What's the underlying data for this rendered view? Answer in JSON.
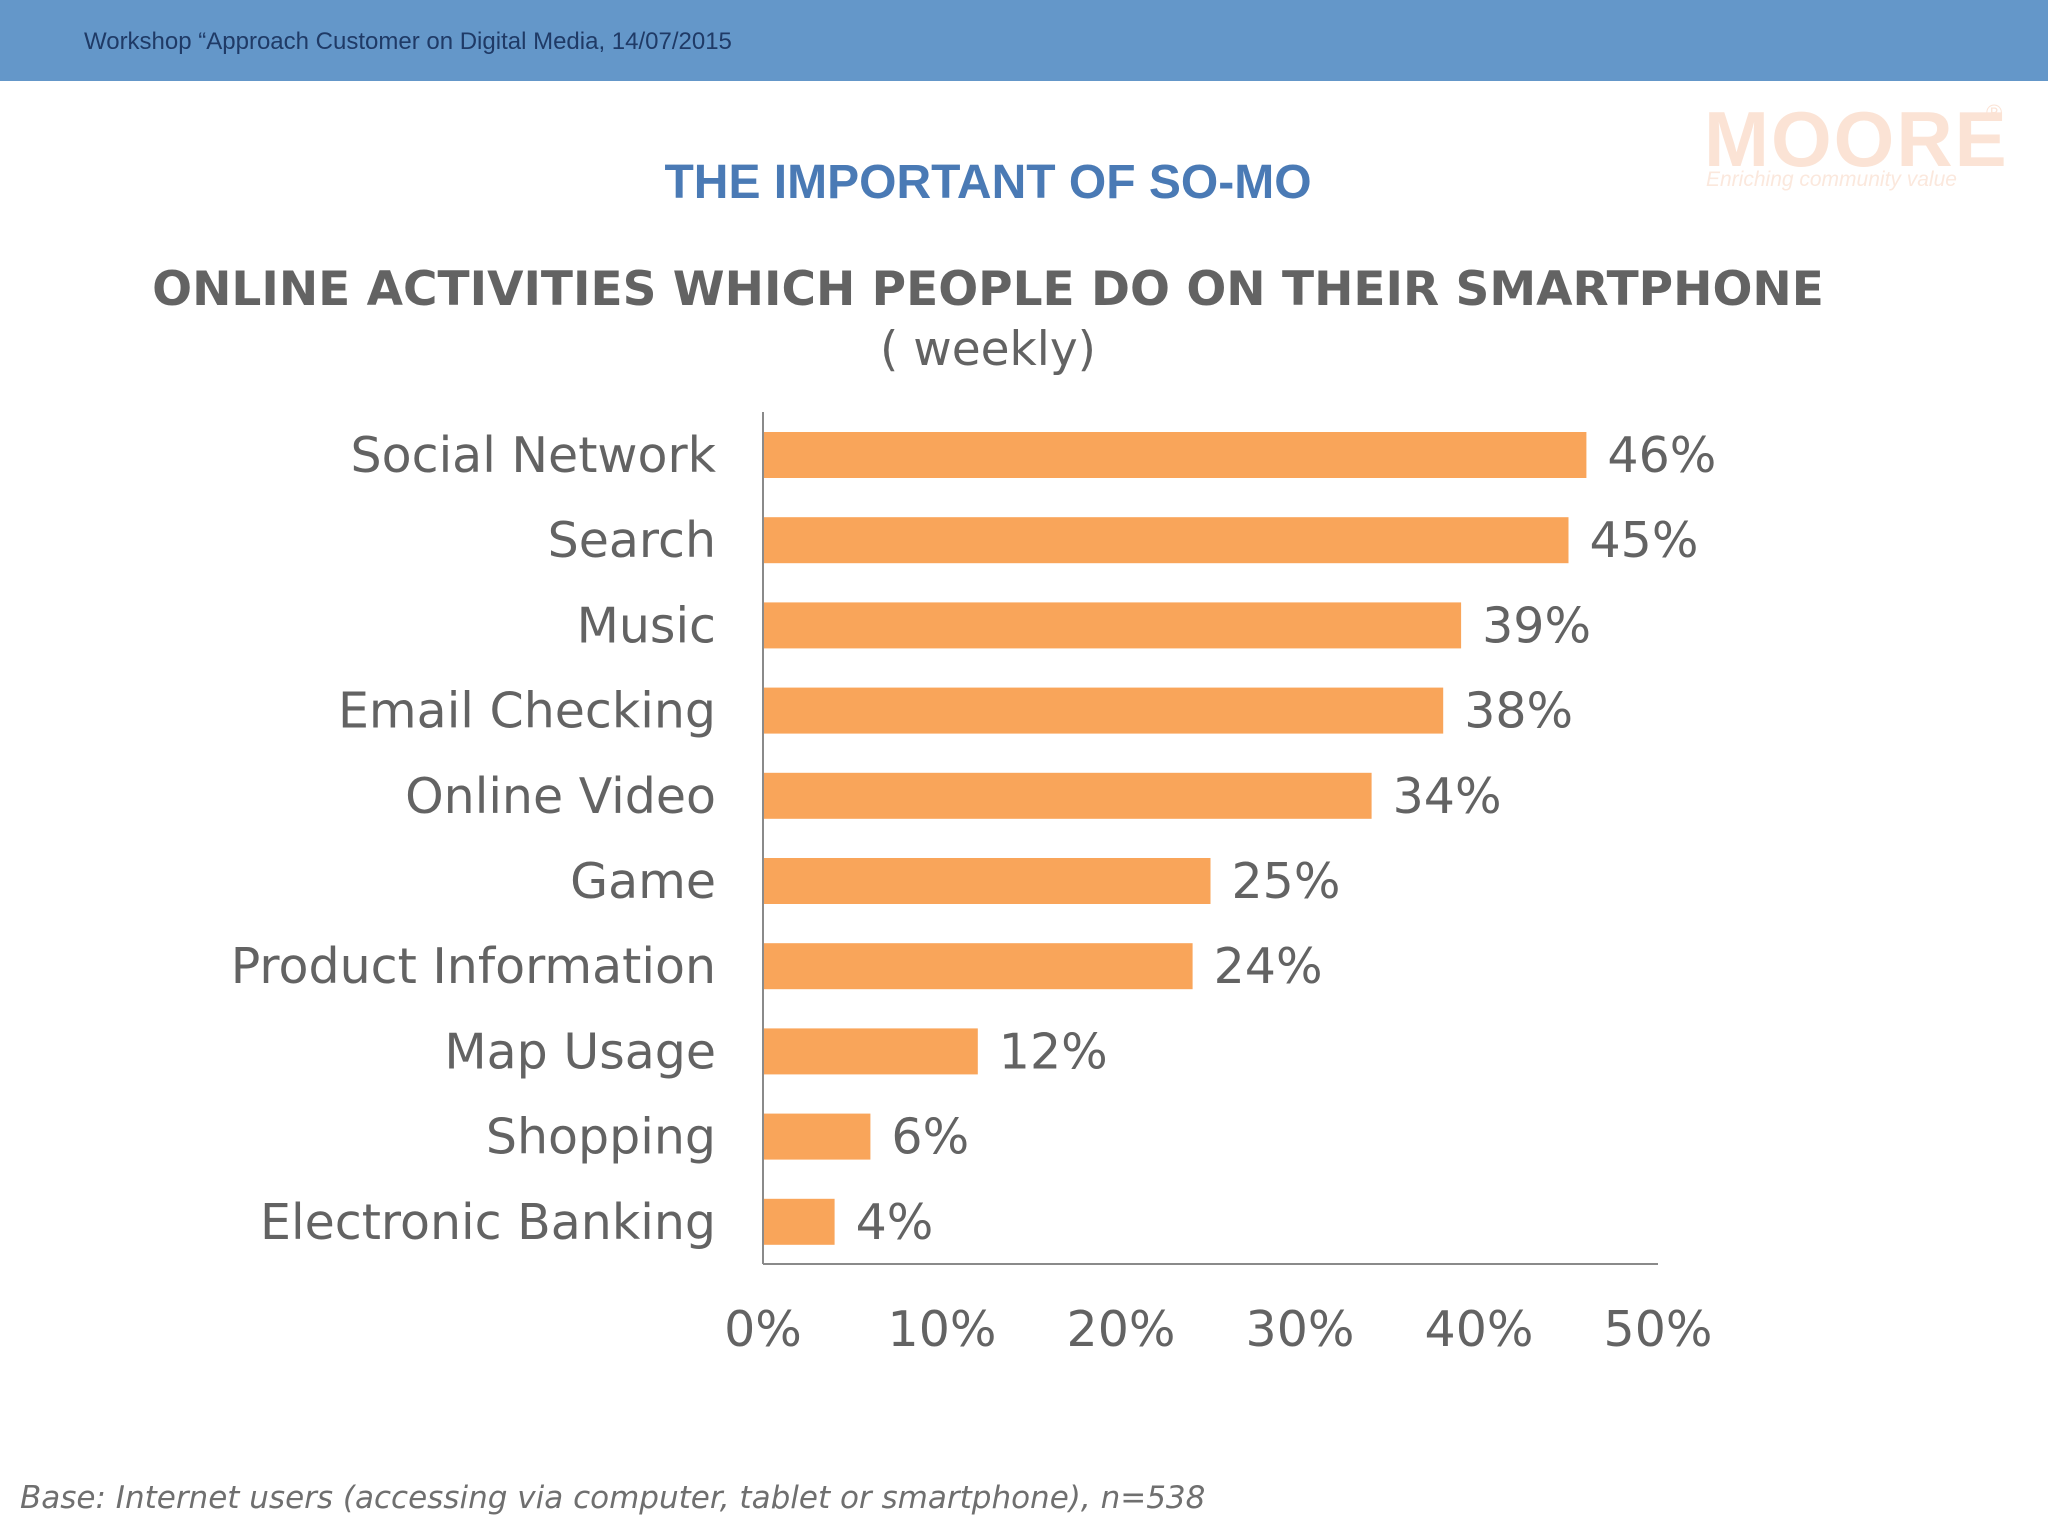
{
  "header": {
    "text": "Workshop “Approach Customer on Digital Media, 14/07/2015"
  },
  "logo": {
    "word": "MOORE",
    "registered": "®",
    "tagline": "Enriching community value"
  },
  "slide_title": "THE IMPORTANT OF SO-MO",
  "colors": {
    "header_band": "#6497c9",
    "bar": "#f9a55a",
    "title": "#4a7ab5",
    "text": "#636363"
  },
  "chart_data": {
    "type": "bar",
    "orientation": "horizontal",
    "title": "ONLINE ACTIVITIES WHICH PEOPLE DO ON THEIR SMARTPHONE",
    "subtitle": "( weekly)",
    "categories": [
      "Social Network",
      "Search",
      "Music",
      "Email Checking",
      "Online Video",
      "Game",
      "Product Information",
      "Map Usage",
      "Shopping",
      "Electronic Banking"
    ],
    "values": [
      46,
      45,
      39,
      38,
      34,
      25,
      24,
      12,
      6,
      4
    ],
    "data_labels": [
      "46%",
      "45%",
      "39%",
      "38%",
      "34%",
      "25%",
      "24%",
      "12%",
      "6%",
      "4%"
    ],
    "xlim": [
      0,
      50
    ],
    "x_ticks": [
      0,
      10,
      20,
      30,
      40,
      50
    ],
    "x_tick_labels": [
      "0%",
      "10%",
      "20%",
      "30%",
      "40%",
      "50%"
    ],
    "grid": false,
    "legend": "none",
    "xlabel": "",
    "ylabel": ""
  },
  "footnote": {
    "label": "Base",
    "text": ": Internet users (accessing via computer, tablet or smartphone), n=538"
  }
}
